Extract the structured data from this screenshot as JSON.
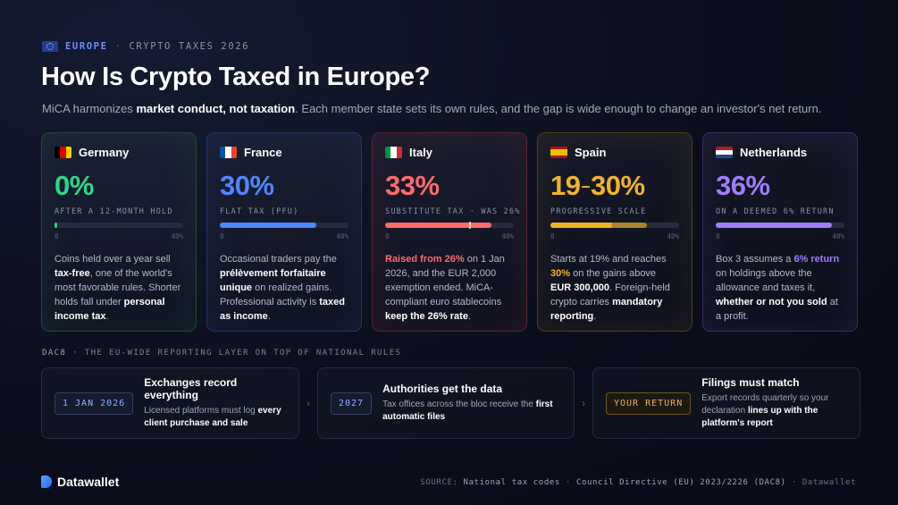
{
  "kicker": {
    "region": "EUROPE",
    "sep": "·",
    "topic": "CRYPTO TAXES 2026"
  },
  "title": "How Is Crypto Taxed in Europe?",
  "subtitle": {
    "pre": "MiCA harmonizes ",
    "bold": "market conduct, not taxation",
    "post": ". Each member state sets its own rules, and the gap is wide enough to change an investor's net return."
  },
  "cards": [
    {
      "country": "Germany",
      "rate": "0%",
      "rate_label": "AFTER A 12-MONTH HOLD",
      "scale_min": "0",
      "scale_max": "40%",
      "bar_fraction": 0.0,
      "accent": "#2fd68a",
      "border": "#1f4a38",
      "flag": [
        "#000000",
        "#dd0000",
        "#ffce00"
      ],
      "desc": [
        {
          "t": "Coins held over a year sell ",
          "b": false
        },
        {
          "t": "tax-free",
          "b": true
        },
        {
          "t": ", one of the world's most favorable rules. Shorter holds fall under ",
          "b": false
        },
        {
          "t": "personal income tax",
          "b": true
        },
        {
          "t": ".",
          "b": false
        }
      ]
    },
    {
      "country": "France",
      "rate": "30%",
      "rate_label": "FLAT TAX (PFU)",
      "scale_min": "0",
      "scale_max": "40%",
      "bar_fraction": 0.75,
      "accent": "#4f86ff",
      "border": "#233466",
      "flag": [
        "#0055a4",
        "#ffffff",
        "#ef4135"
      ],
      "desc": [
        {
          "t": "Occasional traders pay the ",
          "b": false
        },
        {
          "t": "prélèvement forfaitaire unique",
          "b": true
        },
        {
          "t": " on realized gains. Professional activity is ",
          "b": false
        },
        {
          "t": "taxed as income",
          "b": true
        },
        {
          "t": ".",
          "b": false
        }
      ]
    },
    {
      "country": "Italy",
      "rate": "33%",
      "rate_label": "SUBSTITUTE TAX · WAS 26%",
      "scale_min": "0",
      "scale_max": "40%",
      "bar_fraction": 0.825,
      "bar_prev_fraction": 0.65,
      "accent": "#ff6b6b",
      "border": "#5a2530",
      "flag": [
        "#009246",
        "#ffffff",
        "#ce2b37"
      ],
      "desc": [
        {
          "t": "Raised from 26%",
          "b": true,
          "accent": true
        },
        {
          "t": " on 1 Jan 2026, and the EUR 2,000 exemption ended. MiCA-compliant euro stablecoins ",
          "b": false
        },
        {
          "t": "keep the 26% rate",
          "b": true
        },
        {
          "t": ".",
          "b": false
        }
      ]
    },
    {
      "country": "Spain",
      "rate_from": "19",
      "rate_to": "30%",
      "rate_label": "PROGRESSIVE SCALE",
      "scale_min": "0",
      "scale_max": "40%",
      "bar_fraction": 0.75,
      "bar_split_fraction": 0.475,
      "accent": "#f0b429",
      "border": "#4e3e1c",
      "flag": [
        "#aa151b",
        "#f1bf00",
        "#aa151b"
      ],
      "desc": [
        {
          "t": "Starts at 19% and reaches ",
          "b": false
        },
        {
          "t": "30%",
          "b": true,
          "accent": true
        },
        {
          "t": " on the gains above ",
          "b": false
        },
        {
          "t": "EUR 300,000",
          "b": true
        },
        {
          "t": ". Foreign-held crypto carries ",
          "b": false
        },
        {
          "t": "mandatory reporting",
          "b": true
        },
        {
          "t": ".",
          "b": false
        }
      ]
    },
    {
      "country": "Netherlands",
      "rate": "36%",
      "rate_label": "ON A DEEMED 6% RETURN",
      "scale_min": "0",
      "scale_max": "40%",
      "bar_fraction": 0.9,
      "accent": "#a07cff",
      "border": "#3a2f66",
      "flag": [
        "#ae1c28",
        "#ffffff",
        "#21468b"
      ],
      "desc": [
        {
          "t": "Box 3 assumes a ",
          "b": false
        },
        {
          "t": "6% return",
          "b": true,
          "accent": true
        },
        {
          "t": " on holdings above the allowance and taxes it, ",
          "b": false
        },
        {
          "t": "whether or not you sold",
          "b": true
        },
        {
          "t": " at a profit.",
          "b": false
        }
      ]
    }
  ],
  "section": {
    "code": "DAC8",
    "sep": "·",
    "label": "THE EU-WIDE REPORTING LAYER ON TOP OF NATIONAL RULES"
  },
  "steps": [
    {
      "badge": "1 JAN 2026",
      "title": "Exchanges record everything",
      "text": [
        {
          "t": "Licensed platforms must log ",
          "b": false
        },
        {
          "t": "every client purchase and sale",
          "b": true
        }
      ]
    },
    {
      "badge": "2027",
      "title": "Authorities get the data",
      "text": [
        {
          "t": "Tax offices across the bloc receive the ",
          "b": false
        },
        {
          "t": "first automatic files",
          "b": true
        }
      ]
    },
    {
      "badge": "YOUR RETURN",
      "title": "Filings must match",
      "text": [
        {
          "t": "Export records quarterly so your declaration ",
          "b": false
        },
        {
          "t": "lines up with the platform's report",
          "b": true
        }
      ]
    }
  ],
  "chevron": "›",
  "brand": "Datawallet",
  "source": {
    "label": "SOURCE:",
    "items": [
      "National tax codes",
      "Council Directive (EU) 2023/2226 (DAC8)"
    ],
    "sep": "·",
    "credit": "Datawallet"
  }
}
